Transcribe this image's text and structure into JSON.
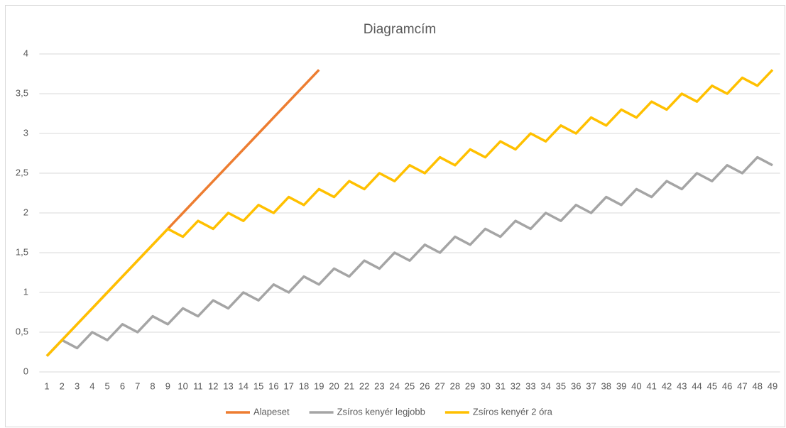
{
  "chart_data": {
    "type": "line",
    "title": "Diagramcím",
    "categories": [
      1,
      2,
      3,
      4,
      5,
      6,
      7,
      8,
      9,
      10,
      11,
      12,
      13,
      14,
      15,
      16,
      17,
      18,
      19,
      20,
      21,
      22,
      23,
      24,
      25,
      26,
      27,
      28,
      29,
      30,
      31,
      32,
      33,
      34,
      35,
      36,
      37,
      38,
      39,
      40,
      41,
      42,
      43,
      44,
      45,
      46,
      47,
      48,
      49
    ],
    "series": [
      {
        "name": "Alapeset",
        "color": "#ED7D31",
        "values": [
          0.2,
          0.4,
          0.6,
          0.8,
          1,
          1.2,
          1.4,
          1.6,
          1.8,
          2,
          2.2,
          2.4,
          2.6,
          2.8,
          3,
          3.2,
          3.4,
          3.6,
          3.8,
          null,
          null,
          null,
          null,
          null,
          null,
          null,
          null,
          null,
          null,
          null,
          null,
          null,
          null,
          null,
          null,
          null,
          null,
          null,
          null,
          null,
          null,
          null,
          null,
          null,
          null,
          null,
          null,
          null,
          null
        ]
      },
      {
        "name": "Zsíros kenyér legjobb",
        "color": "#A5A5A5",
        "values": [
          0.2,
          0.4,
          0.3,
          0.5,
          0.4,
          0.6,
          0.5,
          0.7,
          0.6,
          0.8,
          0.7,
          0.9,
          0.8,
          1.0,
          0.9,
          1.1,
          1.0,
          1.2,
          1.1,
          1.3,
          1.2,
          1.4,
          1.3,
          1.5,
          1.4,
          1.6,
          1.5,
          1.7,
          1.6,
          1.8,
          1.7,
          1.9,
          1.8,
          2.0,
          1.9,
          2.1,
          2.0,
          2.2,
          2.1,
          2.3,
          2.2,
          2.4,
          2.3,
          2.5,
          2.4,
          2.6,
          2.5,
          2.7,
          2.6
        ]
      },
      {
        "name": "Zsíros kenyér 2 óra",
        "color": "#FFC000",
        "values": [
          0.2,
          0.4,
          0.6,
          0.8,
          1,
          1.2,
          1.4,
          1.6,
          1.8,
          1.7,
          1.9,
          1.8,
          2.0,
          1.9,
          2.1,
          2.0,
          2.2,
          2.1,
          2.3,
          2.2,
          2.4,
          2.3,
          2.5,
          2.4,
          2.6,
          2.5,
          2.7,
          2.6,
          2.8,
          2.7,
          2.9,
          2.8,
          3.0,
          2.9,
          3.1,
          3.0,
          3.2,
          3.1,
          3.3,
          3.2,
          3.4,
          3.3,
          3.5,
          3.4,
          3.6,
          3.5,
          3.7,
          3.6,
          3.8
        ]
      }
    ],
    "ylim": [
      0,
      4
    ],
    "yticks": [
      0,
      {
        "value": 0.5,
        "label": "0,5"
      },
      1,
      {
        "value": 1.5,
        "label": "1,5"
      },
      2,
      {
        "value": 2.5,
        "label": "2,5"
      },
      3,
      {
        "value": 3.5,
        "label": "3,5"
      },
      4
    ],
    "grid": true,
    "legend": "bottom"
  }
}
